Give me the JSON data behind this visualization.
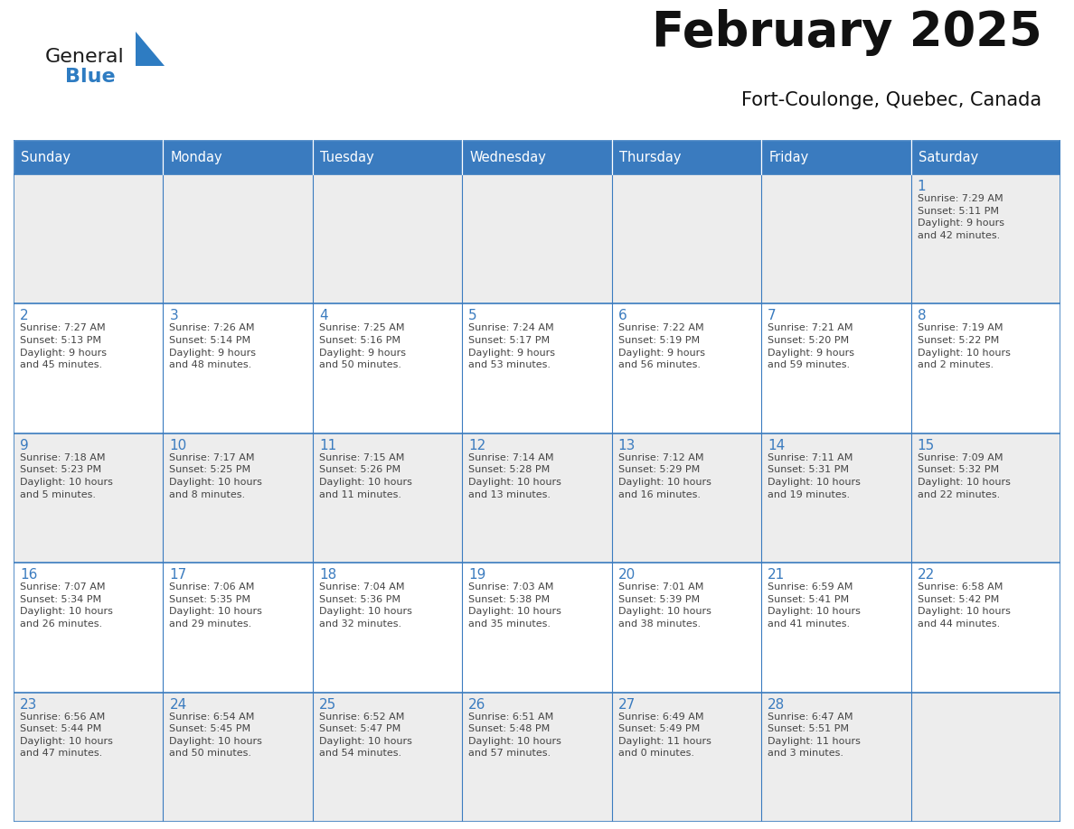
{
  "title": "February 2025",
  "subtitle": "Fort-Coulonge, Quebec, Canada",
  "header_color": "#3A7BBF",
  "header_text_color": "#FFFFFF",
  "cell_bg_white": "#FFFFFF",
  "cell_bg_gray": "#EDEDED",
  "border_color": "#3A7BBF",
  "text_color": "#444444",
  "day_num_color": "#3A7BBF",
  "days_of_week": [
    "Sunday",
    "Monday",
    "Tuesday",
    "Wednesday",
    "Thursday",
    "Friday",
    "Saturday"
  ],
  "weeks": [
    [
      {
        "day": null,
        "info": null
      },
      {
        "day": null,
        "info": null
      },
      {
        "day": null,
        "info": null
      },
      {
        "day": null,
        "info": null
      },
      {
        "day": null,
        "info": null
      },
      {
        "day": null,
        "info": null
      },
      {
        "day": 1,
        "info": "Sunrise: 7:29 AM\nSunset: 5:11 PM\nDaylight: 9 hours\nand 42 minutes."
      }
    ],
    [
      {
        "day": 2,
        "info": "Sunrise: 7:27 AM\nSunset: 5:13 PM\nDaylight: 9 hours\nand 45 minutes."
      },
      {
        "day": 3,
        "info": "Sunrise: 7:26 AM\nSunset: 5:14 PM\nDaylight: 9 hours\nand 48 minutes."
      },
      {
        "day": 4,
        "info": "Sunrise: 7:25 AM\nSunset: 5:16 PM\nDaylight: 9 hours\nand 50 minutes."
      },
      {
        "day": 5,
        "info": "Sunrise: 7:24 AM\nSunset: 5:17 PM\nDaylight: 9 hours\nand 53 minutes."
      },
      {
        "day": 6,
        "info": "Sunrise: 7:22 AM\nSunset: 5:19 PM\nDaylight: 9 hours\nand 56 minutes."
      },
      {
        "day": 7,
        "info": "Sunrise: 7:21 AM\nSunset: 5:20 PM\nDaylight: 9 hours\nand 59 minutes."
      },
      {
        "day": 8,
        "info": "Sunrise: 7:19 AM\nSunset: 5:22 PM\nDaylight: 10 hours\nand 2 minutes."
      }
    ],
    [
      {
        "day": 9,
        "info": "Sunrise: 7:18 AM\nSunset: 5:23 PM\nDaylight: 10 hours\nand 5 minutes."
      },
      {
        "day": 10,
        "info": "Sunrise: 7:17 AM\nSunset: 5:25 PM\nDaylight: 10 hours\nand 8 minutes."
      },
      {
        "day": 11,
        "info": "Sunrise: 7:15 AM\nSunset: 5:26 PM\nDaylight: 10 hours\nand 11 minutes."
      },
      {
        "day": 12,
        "info": "Sunrise: 7:14 AM\nSunset: 5:28 PM\nDaylight: 10 hours\nand 13 minutes."
      },
      {
        "day": 13,
        "info": "Sunrise: 7:12 AM\nSunset: 5:29 PM\nDaylight: 10 hours\nand 16 minutes."
      },
      {
        "day": 14,
        "info": "Sunrise: 7:11 AM\nSunset: 5:31 PM\nDaylight: 10 hours\nand 19 minutes."
      },
      {
        "day": 15,
        "info": "Sunrise: 7:09 AM\nSunset: 5:32 PM\nDaylight: 10 hours\nand 22 minutes."
      }
    ],
    [
      {
        "day": 16,
        "info": "Sunrise: 7:07 AM\nSunset: 5:34 PM\nDaylight: 10 hours\nand 26 minutes."
      },
      {
        "day": 17,
        "info": "Sunrise: 7:06 AM\nSunset: 5:35 PM\nDaylight: 10 hours\nand 29 minutes."
      },
      {
        "day": 18,
        "info": "Sunrise: 7:04 AM\nSunset: 5:36 PM\nDaylight: 10 hours\nand 32 minutes."
      },
      {
        "day": 19,
        "info": "Sunrise: 7:03 AM\nSunset: 5:38 PM\nDaylight: 10 hours\nand 35 minutes."
      },
      {
        "day": 20,
        "info": "Sunrise: 7:01 AM\nSunset: 5:39 PM\nDaylight: 10 hours\nand 38 minutes."
      },
      {
        "day": 21,
        "info": "Sunrise: 6:59 AM\nSunset: 5:41 PM\nDaylight: 10 hours\nand 41 minutes."
      },
      {
        "day": 22,
        "info": "Sunrise: 6:58 AM\nSunset: 5:42 PM\nDaylight: 10 hours\nand 44 minutes."
      }
    ],
    [
      {
        "day": 23,
        "info": "Sunrise: 6:56 AM\nSunset: 5:44 PM\nDaylight: 10 hours\nand 47 minutes."
      },
      {
        "day": 24,
        "info": "Sunrise: 6:54 AM\nSunset: 5:45 PM\nDaylight: 10 hours\nand 50 minutes."
      },
      {
        "day": 25,
        "info": "Sunrise: 6:52 AM\nSunset: 5:47 PM\nDaylight: 10 hours\nand 54 minutes."
      },
      {
        "day": 26,
        "info": "Sunrise: 6:51 AM\nSunset: 5:48 PM\nDaylight: 10 hours\nand 57 minutes."
      },
      {
        "day": 27,
        "info": "Sunrise: 6:49 AM\nSunset: 5:49 PM\nDaylight: 11 hours\nand 0 minutes."
      },
      {
        "day": 28,
        "info": "Sunrise: 6:47 AM\nSunset: 5:51 PM\nDaylight: 11 hours\nand 3 minutes."
      },
      {
        "day": null,
        "info": null
      }
    ]
  ],
  "logo_color_general": "#1a1a1a",
  "logo_color_blue": "#2E7CC2",
  "logo_triangle_color": "#2E7CC2",
  "fig_width": 11.88,
  "fig_height": 9.18,
  "dpi": 100
}
